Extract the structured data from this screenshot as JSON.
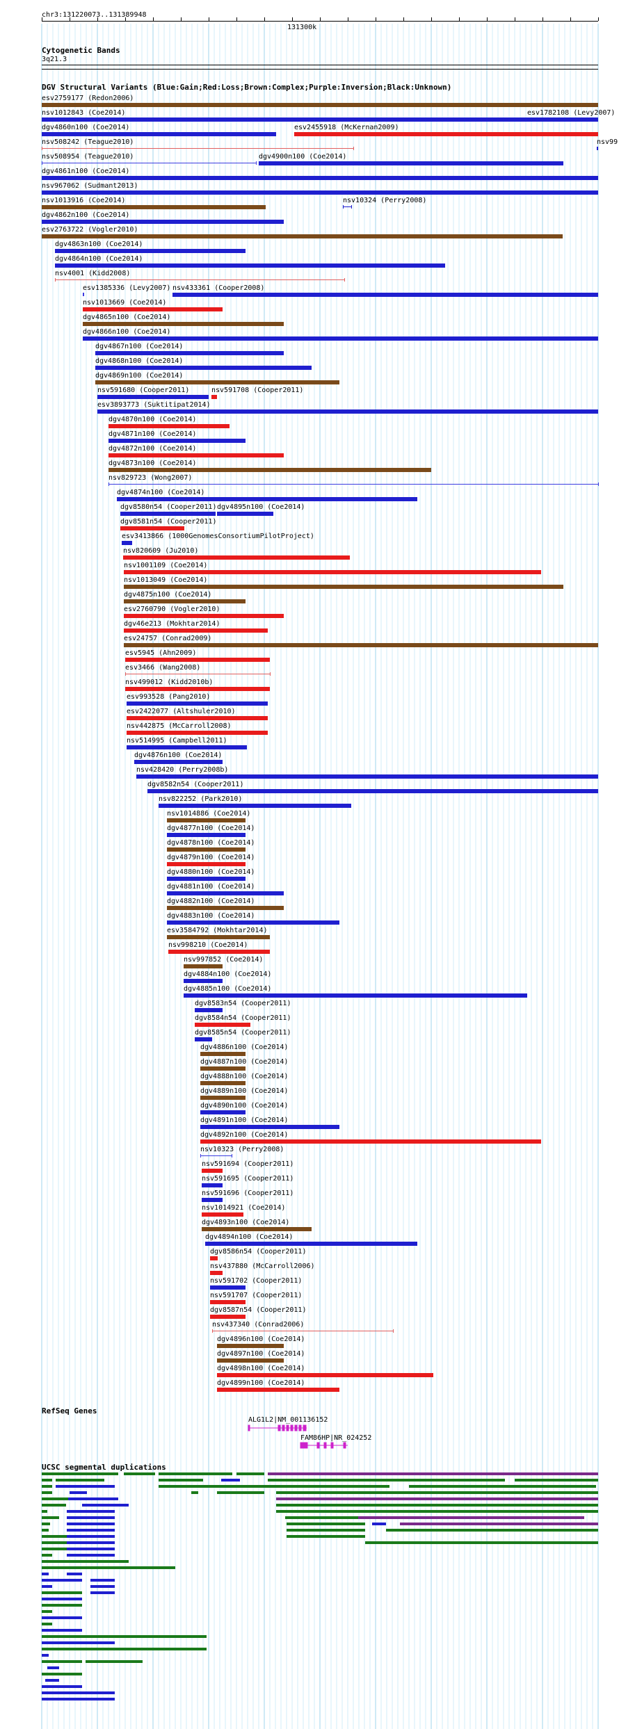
{
  "browser": {
    "position": "chr3:131220073..131389948",
    "ruler_center_label": "131300k"
  },
  "cytoband": {
    "title": "Cytogenetic Bands",
    "band": "3q21.3"
  },
  "dgv": {
    "title": "DGV Structural Variants (Blue:Gain;Red:Loss;Brown:Complex;Purple:Inversion;Black:Unknown)",
    "colors": {
      "gain": "#1f1fcf",
      "loss": "#e81c1c",
      "complex": "#7a4a1a",
      "thin_red": "#e06060",
      "thin_blue": "#3c3ce0"
    },
    "labels": [
      "esv2759177 (Redon2006)",
      "nsv1012843 (Coe2014)",
      "esv1782108 (Levy2007)",
      "dgv4860n100 (Coe2014)",
      "esv2455918 (McKernan2009)",
      "nsv508242 (Teague2010)",
      "nsv99",
      "nsv508954 (Teague2010)",
      "dgv4900n100 (Coe2014)",
      "dgv4861n100 (Coe2014)",
      "nsv967062 (Sudmant2013)",
      "nsv1013916 (Coe2014)",
      "nsv10324 (Perry2008)",
      "dgv4862n100 (Coe2014)",
      "esv2763722 (Vogler2010)",
      "dgv4863n100 (Coe2014)",
      "dgv4864n100 (Coe2014)",
      "nsv4001 (Kidd2008)",
      "esv1385336 (Levy2007)",
      "nsv433361 (Cooper2008)",
      "nsv1013669 (Coe2014)",
      "dgv4865n100 (Coe2014)",
      "dgv4866n100 (Coe2014)",
      "dgv4867n100 (Coe2014)",
      "dgv4868n100 (Coe2014)",
      "dgv4869n100 (Coe2014)",
      "nsv591680 (Cooper2011)",
      "nsv591708 (Cooper2011)",
      "esv3893773 (Suktitipat2014)",
      "dgv4870n100 (Coe2014)",
      "dgv4871n100 (Coe2014)",
      "dgv4872n100 (Coe2014)",
      "dgv4873n100 (Coe2014)",
      "nsv829723 (Wong2007)",
      "dgv4874n100 (Coe2014)",
      "dgv8580n54 (Cooper2011)",
      "dgv4895n100 (Coe2014)",
      "dgv8581n54 (Cooper2011)",
      "esv3413866 (1000GenomesConsortiumPilotProject)",
      "nsv820609 (Ju2010)",
      "nsv1001109 (Coe2014)",
      "nsv1013049 (Coe2014)",
      "dgv4875n100 (Coe2014)",
      "esv2760790 (Vogler2010)",
      "dgv46e213 (Mokhtar2014)",
      "esv24757 (Conrad2009)",
      "esv5945 (Ahn2009)",
      "esv3466 (Wang2008)",
      "nsv499012 (Kidd2010b)",
      "esv993528 (Pang2010)",
      "esv2422077 (Altshuler2010)",
      "nsv442875 (McCarroll2008)",
      "nsv514995 (Campbell2011)",
      "dgv4876n100 (Coe2014)",
      "nsv428420 (Perry2008b)",
      "dgv8582n54 (Cooper2011)",
      "nsv822252 (Park2010)",
      "nsv1014886 (Coe2014)",
      "dgv4877n100 (Coe2014)",
      "dgv4878n100 (Coe2014)",
      "dgv4879n100 (Coe2014)",
      "dgv4880n100 (Coe2014)",
      "dgv4881n100 (Coe2014)",
      "dgv4882n100 (Coe2014)",
      "dgv4883n100 (Coe2014)",
      "esv3584792 (Mokhtar2014)",
      "nsv998210 (Coe2014)",
      "nsv997852 (Coe2014)",
      "dgv4884n100 (Coe2014)",
      "dgv4885n100 (Coe2014)",
      "dgv8583n54 (Cooper2011)",
      "dgv8584n54 (Cooper2011)",
      "dgv8585n54 (Cooper2011)",
      "dgv4886n100 (Coe2014)",
      "dgv4887n100 (Coe2014)",
      "dgv4888n100 (Coe2014)",
      "dgv4889n100 (Coe2014)",
      "dgv4890n100 (Coe2014)",
      "dgv4891n100 (Coe2014)",
      "dgv4892n100 (Coe2014)",
      "nsv10323 (Perry2008)",
      "nsv591694 (Cooper2011)",
      "nsv591695 (Cooper2011)",
      "nsv591696 (Cooper2011)",
      "nsv1014921 (Coe2014)",
      "dgv4893n100 (Coe2014)",
      "dgv4894n100 (Coe2014)",
      "dgv8586n54 (Cooper2011)",
      "nsv437880 (McCarroll2006)",
      "nsv591702 (Cooper2011)",
      "nsv591707 (Cooper2011)",
      "dgv8587n54 (Cooper2011)",
      "nsv437340 (Conrad2006)",
      "dgv4896n100 (Coe2014)",
      "dgv4897n100 (Coe2014)",
      "dgv4898n100 (Coe2014)",
      "dgv4899n100 (Coe2014)"
    ]
  },
  "refseq": {
    "title": "RefSeq Genes",
    "genes": [
      "ALG1L2|NM_001136152",
      "FAM86HP|NR_024252"
    ],
    "color": "#cc22cc"
  },
  "segdups": {
    "title": "UCSC segmental duplications",
    "colors": {
      "green": "#1a7a1a",
      "blue": "#1f1fcf",
      "purple": "#7a2a8a"
    }
  }
}
